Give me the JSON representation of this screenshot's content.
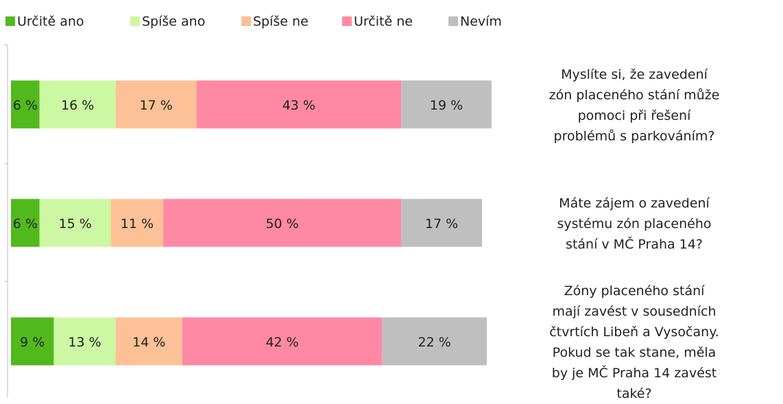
{
  "chart_data": {
    "type": "bar",
    "orientation": "horizontal",
    "stacked": true,
    "categories": [
      "Myslíte si, že zavedení zón placeného stání může pomoci při řešení problémů s parkováním?",
      "Máte zájem o zavedení systému zón placeného stání v MČ Praha 14?",
      "Zóny placeného stání mají zavést v sousedních čtvrtích Libeň a Vysočany. Pokud se tak stane, měla by je MČ Praha 14 zavést také?"
    ],
    "series": [
      {
        "name": "Určitě ano",
        "color": "#52b91d",
        "values": [
          6,
          6,
          9
        ],
        "value_labels": [
          "6 %",
          "6 %",
          "9 %"
        ]
      },
      {
        "name": "Spíše ano",
        "color": "#ccf7a3",
        "values": [
          16,
          15,
          13
        ],
        "value_labels": [
          "16 %",
          "15 %",
          "13 %"
        ]
      },
      {
        "name": "Spíše ne",
        "color": "#fcc196",
        "values": [
          17,
          11,
          14
        ],
        "value_labels": [
          "17 %",
          "11 %",
          "14 %"
        ]
      },
      {
        "name": "Určitě ne",
        "color": "#ff89a4",
        "values": [
          43,
          50,
          42
        ],
        "value_labels": [
          "43 %",
          "50 %",
          "42 %"
        ]
      },
      {
        "name": "Nevím",
        "color": "#bfbfbf",
        "values": [
          19,
          17,
          22
        ],
        "value_labels": [
          "19 %",
          "17 %",
          "22 %"
        ]
      }
    ],
    "xlim": [
      0,
      100
    ],
    "legend": "top"
  }
}
